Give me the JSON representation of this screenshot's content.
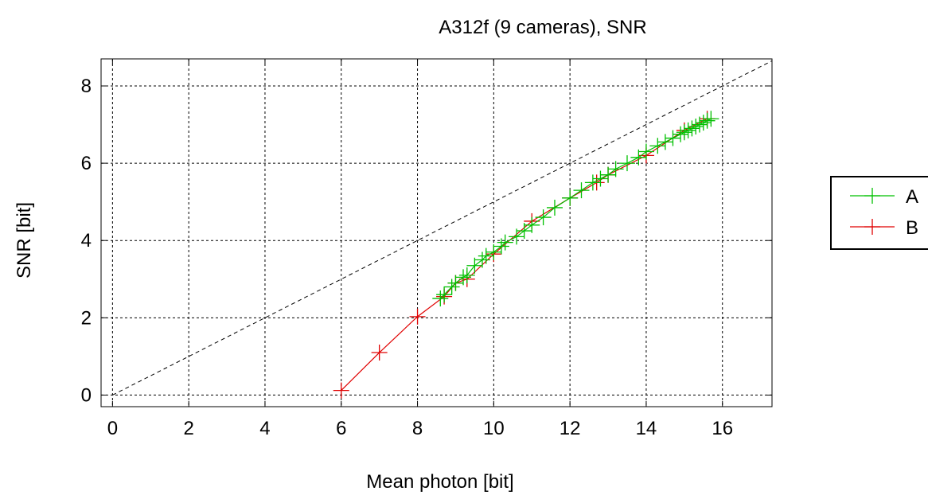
{
  "chart_data": {
    "type": "line",
    "title": "A312f (9 cameras), SNR",
    "xlabel": "Mean photon [bit]",
    "ylabel": "SNR [bit]",
    "xlim": [
      -0.3,
      17.3
    ],
    "ylim": [
      -0.3,
      8.7
    ],
    "xticks": [
      0,
      2,
      4,
      6,
      8,
      10,
      12,
      14,
      16
    ],
    "yticks": [
      0,
      2,
      4,
      6,
      8
    ],
    "grid": true,
    "legend_position": "right",
    "reference_line": {
      "style": "dashed",
      "color": "#000000",
      "slope": 0.5,
      "intercept": 0
    },
    "series": [
      {
        "name": "A",
        "color": "#00c000",
        "marker": "plus",
        "x": [
          8.6,
          8.7,
          8.9,
          9.0,
          9.2,
          9.3,
          9.5,
          9.7,
          9.8,
          10.0,
          10.2,
          10.3,
          10.6,
          10.8,
          11.0,
          11.3,
          11.6,
          12.0,
          12.3,
          12.6,
          12.8,
          13.0,
          13.2,
          13.5,
          13.8,
          14.0,
          14.3,
          14.5,
          14.7,
          14.9,
          15.0,
          15.1,
          15.2,
          15.3,
          15.4,
          15.5,
          15.6,
          15.7
        ],
        "y": [
          2.5,
          2.6,
          2.8,
          2.9,
          3.05,
          3.1,
          3.35,
          3.5,
          3.6,
          3.7,
          3.85,
          3.95,
          4.1,
          4.25,
          4.4,
          4.6,
          4.85,
          5.1,
          5.3,
          5.5,
          5.6,
          5.7,
          5.85,
          6.0,
          6.15,
          6.3,
          6.45,
          6.55,
          6.65,
          6.75,
          6.8,
          6.85,
          6.9,
          6.95,
          7.0,
          7.05,
          7.1,
          7.15
        ]
      },
      {
        "name": "B",
        "color": "#e00000",
        "marker": "plus",
        "x": [
          6.0,
          7.0,
          8.0,
          8.7,
          9.0,
          9.3,
          10.0,
          11.0,
          12.0,
          12.7,
          13.0,
          14.0,
          15.0,
          15.6
        ],
        "y": [
          0.12,
          1.1,
          2.03,
          2.55,
          2.9,
          3.0,
          3.65,
          4.5,
          5.1,
          5.5,
          5.7,
          6.2,
          6.85,
          7.15
        ]
      }
    ]
  }
}
